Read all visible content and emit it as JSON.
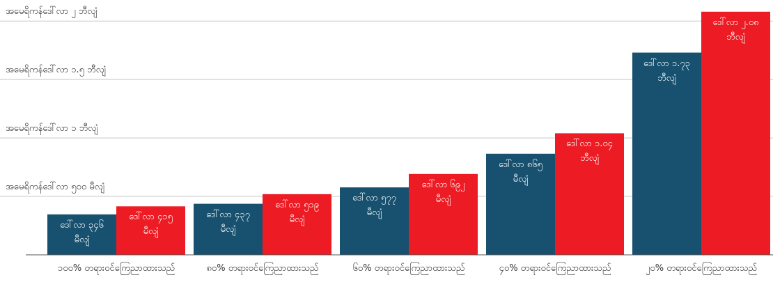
{
  "chart_data": {
    "type": "bar",
    "categories": [
      "၁၀၀% တရားဝင်ကြေညာထားသည်",
      "၈၀% တရားဝင်ကြေညာထားသည်",
      "၆၀% တရားဝင်ကြေညာထားသည်",
      "၄၀% တရားဝင်ကြေညာထားသည်",
      "၂၀% တရားဝင်ကြေညာထားသည်"
    ],
    "series": [
      {
        "color": "#17516f",
        "values": [
          346,
          437,
          577,
          865,
          1730
        ],
        "value_labels": [
          "ဒေါ်လာ ၃၄၆ မီလျံ",
          "ဒေါ်လာ ၄၃၇ မီလျံ",
          "ဒေါ်လာ ၅၇၇ မီလျံ",
          "ဒေါ်လာ ၈၆၅ မီလျံ",
          "ဒေါ်လာ ၁.၇၃ ဘီလျံ"
        ]
      },
      {
        "color": "#ed1c24",
        "values": [
          415,
          519,
          692,
          1040,
          2080
        ],
        "value_labels": [
          "ဒေါ်လာ ၄၁၅ မီလျံ",
          "ဒေါ်လာ ၅၁၉ မီလျံ",
          "ဒေါ်လာ ၆၉၂ မီလျံ",
          "ဒေါ်လာ ၁.၀၄ ဘီလျံ",
          "ဒေါ်လာ ၂.၀၈ ဘီလျံ"
        ]
      }
    ],
    "ylim": [
      0,
      2180
    ],
    "yticks": [
      {
        "value": 500,
        "label": "အမေရိကန်ဒေါ်လာ ၅၀၀ မီလျံ"
      },
      {
        "value": 1000,
        "label": "အမေရိကန်ဒေါ်လာ ၁ ဘီလျံ"
      },
      {
        "value": 1500,
        "label": "အမေရိကန်ဒေါ်လာ ၁.၅ ဘီလျံ"
      },
      {
        "value": 2000,
        "label": "အမေရိကန်ဒေါ်လာ ၂ ဘီလျံ"
      }
    ],
    "grid": true
  }
}
